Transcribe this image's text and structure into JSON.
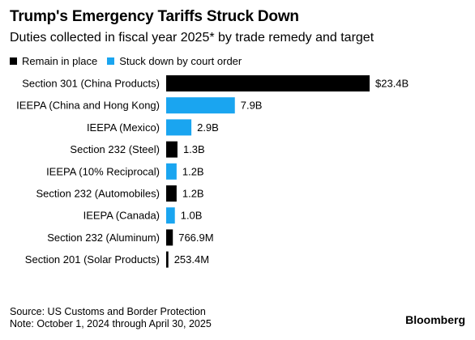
{
  "title": "Trump's Emergency Tariffs Struck Down",
  "subtitle": "Duties collected in fiscal year 2025* by trade remedy and target",
  "legend": {
    "remain": {
      "label": "Remain in place",
      "color": "#000000"
    },
    "struck": {
      "label": "Stuck down by court order",
      "color": "#1aa5f0"
    }
  },
  "chart_data": {
    "type": "bar",
    "orientation": "horizontal",
    "unit": "USD",
    "categories": [
      "Section 301 (China Products)",
      "IEEPA (China and Hong Kong)",
      "IEEPA (Mexico)",
      "Section 232 (Steel)",
      "IEEPA (10% Reciprocal)",
      "Section 232 (Automobiles)",
      "IEEPA (Canada)",
      "Section 232 (Aluminum)",
      "Section 201 (Solar Products)"
    ],
    "values": [
      23.4,
      7.9,
      2.9,
      1.3,
      1.2,
      1.2,
      1.0,
      0.7669,
      0.2534
    ],
    "value_labels": [
      "$23.4B",
      "7.9B",
      "2.9B",
      "1.3B",
      "1.2B",
      "1.2B",
      "1.0B",
      "766.9M",
      "253.4M"
    ],
    "status": [
      "remain",
      "struck",
      "struck",
      "remain",
      "struck",
      "remain",
      "struck",
      "remain",
      "remain"
    ],
    "series": [
      {
        "key": "remain",
        "name": "Remain in place"
      },
      {
        "key": "struck",
        "name": "Stuck down by court order"
      }
    ],
    "xlim": [
      0,
      23.4
    ],
    "grid": false,
    "legend_position": "top-left"
  },
  "footer": {
    "source": "Source: US Customs and Border Protection",
    "note": "Note: October 1, 2024 through April 30, 2025",
    "brand": "Bloomberg"
  }
}
